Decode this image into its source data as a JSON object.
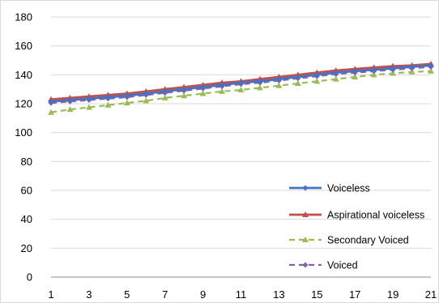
{
  "chart_data": {
    "type": "line",
    "title": "",
    "xlabel": "",
    "ylabel": "",
    "x": [
      1,
      2,
      3,
      4,
      5,
      6,
      7,
      8,
      9,
      10,
      11,
      12,
      13,
      14,
      15,
      16,
      17,
      18,
      19,
      20,
      21
    ],
    "x_tick_labels": [
      "1",
      "3",
      "5",
      "7",
      "9",
      "11",
      "13",
      "15",
      "17",
      "19",
      "21"
    ],
    "y_tick_labels": [
      "0",
      "20",
      "40",
      "60",
      "80",
      "100",
      "120",
      "140",
      "160",
      "180"
    ],
    "ylim": [
      0,
      180
    ],
    "xlim": [
      1,
      21
    ],
    "grid": "horizontal",
    "legend_position": "bottom-right",
    "series": [
      {
        "name": "Voiceless",
        "color": "#4472C4",
        "style": "solid",
        "marker": "diamond",
        "values": [
          121.5,
          122.5,
          123.5,
          124.5,
          125.5,
          127,
          128.5,
          130,
          131.5,
          133,
          134.5,
          135.5,
          137,
          138.5,
          140,
          141.5,
          142.5,
          143.5,
          144.5,
          145.5,
          146.5
        ]
      },
      {
        "name": "Aspirational voiceless",
        "color": "#C0504D",
        "style": "solid",
        "marker": "triangle",
        "values": [
          123,
          124,
          125,
          126,
          127,
          128.5,
          130,
          131.5,
          133,
          134.5,
          135.5,
          137,
          138.5,
          140,
          141.5,
          143,
          144,
          145,
          146,
          146.5,
          147.5
        ]
      },
      {
        "name": "Secondary Voiced",
        "color": "#9BBB59",
        "style": "dashed",
        "marker": "triangle",
        "values": [
          114,
          116,
          117.5,
          119,
          120.5,
          122,
          124,
          125.5,
          127,
          128.5,
          129.5,
          131,
          132.5,
          134,
          135.5,
          137,
          138.5,
          140,
          141,
          142,
          142.5
        ]
      },
      {
        "name": "Voiced",
        "color": "#8064A2",
        "style": "dashed",
        "marker": "diamond",
        "values": [
          120.5,
          121.5,
          122.5,
          123.5,
          124.5,
          126,
          127.5,
          129,
          130.5,
          132,
          133.5,
          134.5,
          136,
          137.5,
          139,
          140.5,
          141.5,
          142.5,
          143.5,
          144.5,
          145.5
        ]
      }
    ]
  }
}
